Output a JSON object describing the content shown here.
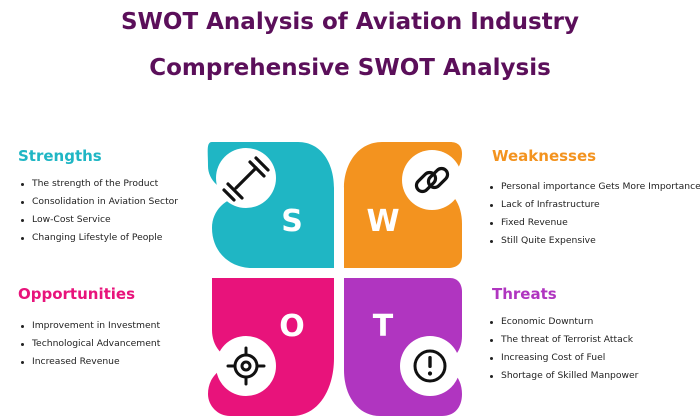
{
  "title": "SWOT Analysis of Aviation Industry",
  "subtitle": "Comprehensive SWOT Analysis",
  "colors": {
    "strengths": "#1fb6c4",
    "weaknesses": "#f3931f",
    "opportunities": "#e8137b",
    "threats": "#b035c0",
    "title": "#5b0f5a"
  },
  "quadrants": {
    "strengths": {
      "heading": "Strengths",
      "letter": "S",
      "icon": "dumbbell-icon",
      "items": [
        "The strength of the Product",
        "Consolidation in Aviation Sector",
        "Low-Cost Service",
        "Changing Lifestyle of People"
      ]
    },
    "weaknesses": {
      "heading": "Weaknesses",
      "letter": "W",
      "icon": "chain-link-icon",
      "items": [
        "Personal importance Gets More Importance",
        "Lack of Infrastructure",
        "Fixed Revenue",
        "Still Quite Expensive"
      ]
    },
    "opportunities": {
      "heading": "Opportunities",
      "letter": "O",
      "icon": "crosshair-target-icon",
      "items": [
        "Improvement in Investment",
        "Technological Advancement",
        "Increased Revenue"
      ]
    },
    "threats": {
      "heading": "Threats",
      "letter": "T",
      "icon": "exclamation-circle-icon",
      "items": [
        "Economic Downturn",
        "The threat of Terrorist Attack",
        "Increasing Cost of Fuel",
        "Shortage of Skilled Manpower"
      ]
    }
  }
}
